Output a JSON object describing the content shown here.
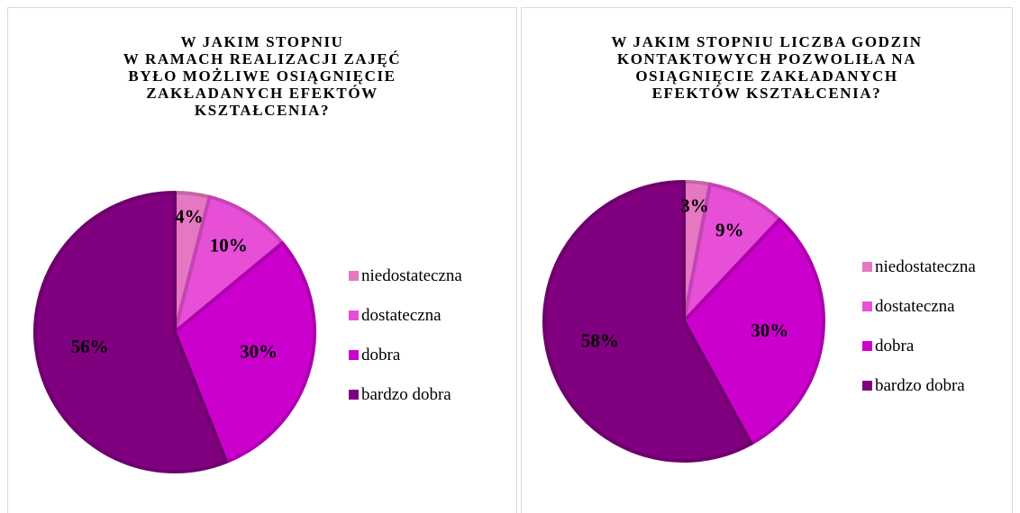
{
  "chart_data": [
    {
      "type": "pie",
      "title": "W JAKIM STOPNIU\nW RAMACH REALIZACJI ZAJĘĆ\nBYŁO MOŻLIWE OSIĄGNIĘCIE\nZAKŁADANYCH EFEKTÓW\nKSZTAŁCENIA?",
      "categories": [
        "niedostateczna",
        "dostateczna",
        "dobra",
        "bardzo dobra"
      ],
      "values": [
        4,
        10,
        30,
        56
      ],
      "value_labels": [
        "4%",
        "10%",
        "30%",
        "56%"
      ],
      "colors": [
        "#e678c1",
        "#e64fd6",
        "#cc00cc",
        "#800080"
      ],
      "legend_position": "right"
    },
    {
      "type": "pie",
      "title": "W JAKIM STOPNIU LICZBA GODZIN\nKONTAKTOWYCH POZWOLIŁA NA\nOSIĄGNIĘCIE ZAKŁADANYCH\nEFEKTÓW KSZTAŁCENIA?",
      "categories": [
        "niedostateczna",
        "dostateczna",
        "dobra",
        "bardzo dobra"
      ],
      "values": [
        3,
        9,
        30,
        58
      ],
      "value_labels": [
        "3%",
        "9%",
        "30%",
        "58%"
      ],
      "colors": [
        "#e678c1",
        "#e64fd6",
        "#cc00cc",
        "#800080"
      ],
      "legend_position": "right"
    }
  ]
}
